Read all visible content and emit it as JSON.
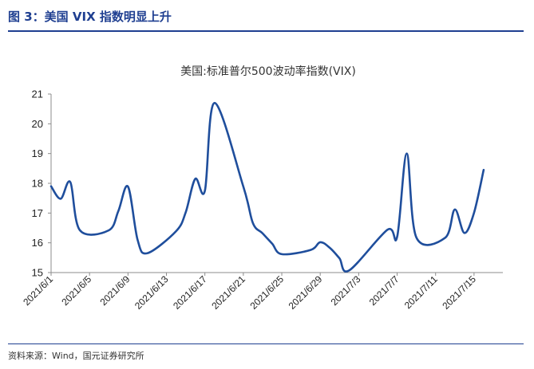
{
  "figure": {
    "caption": "图 3：美国 VIX 指数明显上升",
    "source": "资料来源：Wind，国元证券研究所"
  },
  "colors": {
    "accent": "#1f3f91",
    "line": "#1f4e9c",
    "axis": "#8c8c8c"
  },
  "chart_data": {
    "type": "line",
    "title": "美国:标准普尔500波动率指数(VIX)",
    "xlabel": "",
    "ylabel": "",
    "ylim": [
      15,
      21
    ],
    "yticks": [
      15,
      16,
      17,
      18,
      19,
      20,
      21
    ],
    "grid": false,
    "legend": "none",
    "xticklabels": [
      "2021/6/1",
      "2021/6/5",
      "2021/6/9",
      "2021/6/13",
      "2021/6/17",
      "2021/6/21",
      "2021/6/25",
      "2021/6/29",
      "2021/7/3",
      "2021/7/7",
      "2021/7/11",
      "2021/7/15"
    ],
    "x_tick_dates": [
      "2021-06-01",
      "2021-06-05",
      "2021-06-09",
      "2021-06-13",
      "2021-06-17",
      "2021-06-21",
      "2021-06-25",
      "2021-06-29",
      "2021-07-03",
      "2021-07-07",
      "2021-07-11",
      "2021-07-15"
    ],
    "xlim": [
      "2021-06-01",
      "2021-07-18"
    ],
    "series": [
      {
        "x": [
          "2021-06-01",
          "2021-06-02",
          "2021-06-03",
          "2021-06-04",
          "2021-06-07",
          "2021-06-08",
          "2021-06-09",
          "2021-06-10",
          "2021-06-11",
          "2021-06-14",
          "2021-06-15",
          "2021-06-16",
          "2021-06-17",
          "2021-06-18",
          "2021-06-21",
          "2021-06-22",
          "2021-06-23",
          "2021-06-24",
          "2021-06-25",
          "2021-06-28",
          "2021-06-29",
          "2021-06-30",
          "2021-07-01",
          "2021-07-02",
          "2021-07-06",
          "2021-07-07",
          "2021-07-08",
          "2021-07-09",
          "2021-07-12",
          "2021-07-13",
          "2021-07-14",
          "2021-07-15",
          "2021-07-16"
        ],
        "values": [
          17.9,
          17.48,
          18.04,
          16.42,
          16.42,
          17.07,
          17.89,
          16.1,
          15.65,
          16.39,
          17.02,
          18.15,
          17.75,
          20.7,
          17.89,
          16.66,
          16.32,
          15.97,
          15.62,
          15.76,
          16.02,
          15.83,
          15.48,
          15.07,
          16.44,
          16.2,
          19.0,
          16.18,
          16.17,
          17.12,
          16.33,
          17.01,
          18.45
        ]
      }
    ]
  }
}
